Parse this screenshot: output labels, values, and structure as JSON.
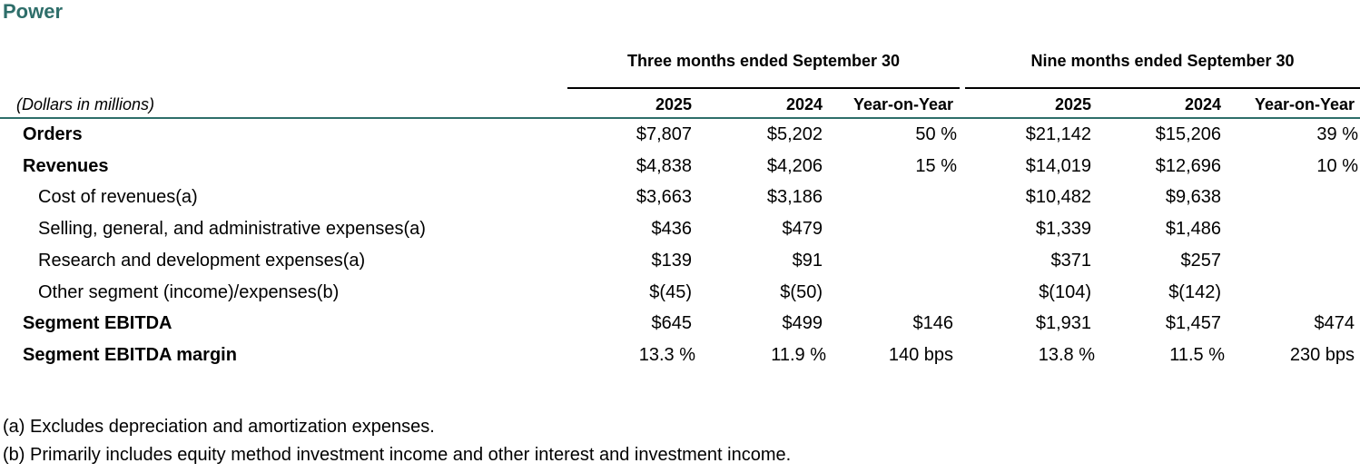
{
  "title": "Power",
  "group_headers": [
    "Three months ended September 30",
    "Nine months ended September 30"
  ],
  "header": {
    "unit_label": "(Dollars in millions)",
    "columns": [
      "2025",
      "2024",
      "Year-on-Year",
      "2025",
      "2024",
      "Year-on-Year"
    ]
  },
  "rows": [
    {
      "label": "Orders",
      "emphasis": true,
      "values": [
        "$7,807",
        "$5,202",
        "50 %",
        "$21,142",
        "$15,206",
        "39 %"
      ]
    },
    {
      "label": "Revenues",
      "emphasis": true,
      "values": [
        "$4,838",
        "$4,206",
        "15 %",
        "$14,019",
        "$12,696",
        "10 %"
      ]
    },
    {
      "label": "Cost of revenues(a)",
      "emphasis": false,
      "values": [
        "$3,663",
        "$3,186",
        null,
        "$10,482",
        "$9,638",
        null
      ]
    },
    {
      "label": "Selling, general, and administrative expenses(a)",
      "emphasis": false,
      "values": [
        "$436",
        "$479",
        null,
        "$1,339",
        "$1,486",
        null
      ]
    },
    {
      "label": "Research and development expenses(a)",
      "emphasis": false,
      "values": [
        "$139",
        "$91",
        null,
        "$371",
        "$257",
        null
      ]
    },
    {
      "label": "Other segment (income)/expenses(b)",
      "emphasis": false,
      "values": [
        "$(45)",
        "$(50)",
        null,
        "$(104)",
        "$(142)",
        null
      ]
    },
    {
      "label": "Segment EBITDA",
      "emphasis": true,
      "values": [
        "$645",
        "$499",
        "$146",
        "$1,931",
        "$1,457",
        "$474"
      ]
    },
    {
      "label": "Segment EBITDA margin",
      "emphasis": true,
      "values": [
        "13.3 %",
        "11.9 %",
        "140 bps",
        "13.8 %",
        "11.5 %",
        "230 bps"
      ]
    }
  ],
  "footnotes": [
    "(a) Excludes depreciation and amortization expenses.",
    "(b) Primarily includes equity method investment income and other interest and investment income."
  ]
}
